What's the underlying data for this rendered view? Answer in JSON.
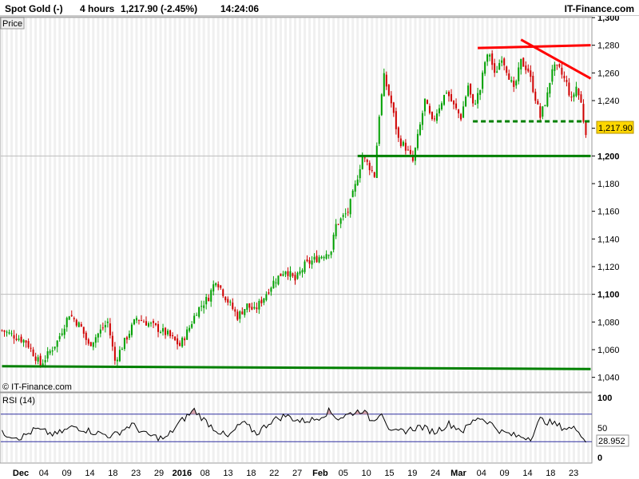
{
  "header": {
    "instrument": "Spot Gold (-)",
    "interval": "4 hours",
    "last_change": "1,217.90 (-2.45%)",
    "time": "14:24:06",
    "brand": "IT-Finance.com"
  },
  "price_panel": {
    "label": "Price",
    "last_price_label": "1,217.90",
    "copyright": "© IT-Finance.com"
  },
  "rsi_panel": {
    "label": "RSI (14)",
    "value_label": "28.952",
    "tick_labels": [
      "100",
      "50",
      "0"
    ],
    "levels": [
      30,
      70
    ]
  },
  "colors": {
    "up_candle": "#00a000",
    "down_candle": "#d00000",
    "support_line": "#008000",
    "resistance_line": "#ff0000",
    "rsi_line": "#000000",
    "rsi_band": "#3030a0",
    "rsi_overbought_fill": "#d4a0a8",
    "last_price_tag": "#ffd700"
  },
  "chart_data": [
    {
      "type": "candlestick",
      "title": "Spot Gold (-)",
      "ylabel": "Price",
      "ylim": [
        1030,
        1300
      ],
      "yticks": [
        1040,
        1060,
        1080,
        1100,
        1120,
        1140,
        1160,
        1180,
        1200,
        1220,
        1240,
        1260,
        1280,
        1300
      ],
      "ytick_labels": [
        "1,040",
        "1,060",
        "1,080",
        "1,100",
        "1,120",
        "1,140",
        "1,160",
        "1,180",
        "1,200",
        "1,220",
        "1,240",
        "1,260",
        "1,280",
        "1,300"
      ],
      "bold_ticks": [
        1100,
        1200,
        1300
      ],
      "x_tick_labels": [
        "Dec",
        "04",
        "09",
        "14",
        "18",
        "23",
        "29",
        "2016",
        "08",
        "13",
        "18",
        "22",
        "27",
        "Feb",
        "05",
        "10",
        "15",
        "19",
        "24",
        "Mar",
        "04",
        "09",
        "14",
        "18",
        "23"
      ],
      "bold_x_labels": [
        "Dec",
        "2016",
        "Feb",
        "Mar"
      ],
      "trajectory": [
        {
          "x": 0,
          "y": 1074
        },
        {
          "x": 10,
          "y": 1066
        },
        {
          "x": 16,
          "y": 1049
        },
        {
          "x": 23,
          "y": 1066
        },
        {
          "x": 28,
          "y": 1086
        },
        {
          "x": 33,
          "y": 1076
        },
        {
          "x": 36,
          "y": 1063
        },
        {
          "x": 44,
          "y": 1080
        },
        {
          "x": 47,
          "y": 1052
        },
        {
          "x": 56,
          "y": 1083
        },
        {
          "x": 62,
          "y": 1078
        },
        {
          "x": 69,
          "y": 1071
        },
        {
          "x": 74,
          "y": 1063
        },
        {
          "x": 78,
          "y": 1076
        },
        {
          "x": 81,
          "y": 1088
        },
        {
          "x": 86,
          "y": 1098
        },
        {
          "x": 89,
          "y": 1111
        },
        {
          "x": 93,
          "y": 1098
        },
        {
          "x": 98,
          "y": 1084
        },
        {
          "x": 102,
          "y": 1092
        },
        {
          "x": 105,
          "y": 1088
        },
        {
          "x": 109,
          "y": 1098
        },
        {
          "x": 113,
          "y": 1109
        },
        {
          "x": 118,
          "y": 1118
        },
        {
          "x": 122,
          "y": 1110
        },
        {
          "x": 126,
          "y": 1121
        },
        {
          "x": 133,
          "y": 1128
        },
        {
          "x": 137,
          "y": 1132
        },
        {
          "x": 139,
          "y": 1150
        },
        {
          "x": 144,
          "y": 1160
        },
        {
          "x": 147,
          "y": 1178
        },
        {
          "x": 150,
          "y": 1200
        },
        {
          "x": 153,
          "y": 1192
        },
        {
          "x": 155,
          "y": 1186
        },
        {
          "x": 157,
          "y": 1230
        },
        {
          "x": 159,
          "y": 1257
        },
        {
          "x": 162,
          "y": 1238
        },
        {
          "x": 165,
          "y": 1212
        },
        {
          "x": 168,
          "y": 1206
        },
        {
          "x": 171,
          "y": 1196
        },
        {
          "x": 174,
          "y": 1222
        },
        {
          "x": 176,
          "y": 1240
        },
        {
          "x": 179,
          "y": 1224
        },
        {
          "x": 182,
          "y": 1236
        },
        {
          "x": 185,
          "y": 1247
        },
        {
          "x": 188,
          "y": 1236
        },
        {
          "x": 191,
          "y": 1228
        },
        {
          "x": 194,
          "y": 1251
        },
        {
          "x": 196,
          "y": 1236
        },
        {
          "x": 199,
          "y": 1248
        },
        {
          "x": 201,
          "y": 1268
        },
        {
          "x": 203,
          "y": 1274
        },
        {
          "x": 205,
          "y": 1258
        },
        {
          "x": 208,
          "y": 1272
        },
        {
          "x": 211,
          "y": 1258
        },
        {
          "x": 213,
          "y": 1247
        },
        {
          "x": 216,
          "y": 1268
        },
        {
          "x": 219,
          "y": 1262
        },
        {
          "x": 222,
          "y": 1242
        },
        {
          "x": 224,
          "y": 1228
        },
        {
          "x": 227,
          "y": 1244
        },
        {
          "x": 229,
          "y": 1264
        },
        {
          "x": 232,
          "y": 1262
        },
        {
          "x": 235,
          "y": 1252
        },
        {
          "x": 237,
          "y": 1240
        },
        {
          "x": 239,
          "y": 1250
        },
        {
          "x": 241,
          "y": 1238
        },
        {
          "x": 242,
          "y": 1226
        },
        {
          "x": 243,
          "y": 1218
        }
      ],
      "lines": [
        {
          "kind": "support",
          "style": "solid",
          "points": [
            {
              "x": 0,
              "y": 1048
            },
            {
              "x": 245,
              "y": 1046
            }
          ]
        },
        {
          "kind": "support",
          "style": "solid",
          "points": [
            {
              "x": 148,
              "y": 1200
            },
            {
              "x": 245,
              "y": 1200
            }
          ]
        },
        {
          "kind": "support",
          "style": "dashed",
          "points": [
            {
              "x": 196,
              "y": 1225
            },
            {
              "x": 245,
              "y": 1225
            }
          ]
        },
        {
          "kind": "resistance",
          "style": "solid",
          "points": [
            {
              "x": 198,
              "y": 1278
            },
            {
              "x": 245,
              "y": 1280
            }
          ]
        },
        {
          "kind": "resistance",
          "style": "solid",
          "points": [
            {
              "x": 216,
              "y": 1284
            },
            {
              "x": 245,
              "y": 1256
            }
          ]
        }
      ],
      "last_price": 1217.9
    },
    {
      "type": "line",
      "title": "RSI (14)",
      "ylim": [
        0,
        100
      ],
      "yticks": [
        0,
        50,
        100
      ],
      "overbought": 70,
      "oversold": 30,
      "trajectory": [
        {
          "x": 0,
          "y": 42
        },
        {
          "x": 8,
          "y": 36
        },
        {
          "x": 14,
          "y": 48
        },
        {
          "x": 22,
          "y": 40
        },
        {
          "x": 30,
          "y": 52
        },
        {
          "x": 38,
          "y": 44
        },
        {
          "x": 46,
          "y": 38
        },
        {
          "x": 54,
          "y": 55
        },
        {
          "x": 60,
          "y": 40
        },
        {
          "x": 68,
          "y": 34
        },
        {
          "x": 74,
          "y": 58
        },
        {
          "x": 80,
          "y": 76
        },
        {
          "x": 84,
          "y": 62
        },
        {
          "x": 88,
          "y": 50
        },
        {
          "x": 94,
          "y": 36
        },
        {
          "x": 100,
          "y": 58
        },
        {
          "x": 106,
          "y": 42
        },
        {
          "x": 112,
          "y": 60
        },
        {
          "x": 118,
          "y": 68
        },
        {
          "x": 124,
          "y": 60
        },
        {
          "x": 130,
          "y": 62
        },
        {
          "x": 136,
          "y": 74
        },
        {
          "x": 140,
          "y": 64
        },
        {
          "x": 146,
          "y": 72
        },
        {
          "x": 150,
          "y": 76
        },
        {
          "x": 154,
          "y": 60
        },
        {
          "x": 158,
          "y": 74
        },
        {
          "x": 162,
          "y": 42
        },
        {
          "x": 168,
          "y": 46
        },
        {
          "x": 174,
          "y": 52
        },
        {
          "x": 180,
          "y": 44
        },
        {
          "x": 186,
          "y": 56
        },
        {
          "x": 192,
          "y": 46
        },
        {
          "x": 198,
          "y": 66
        },
        {
          "x": 202,
          "y": 60
        },
        {
          "x": 208,
          "y": 44
        },
        {
          "x": 214,
          "y": 38
        },
        {
          "x": 220,
          "y": 36
        },
        {
          "x": 224,
          "y": 62
        },
        {
          "x": 228,
          "y": 58
        },
        {
          "x": 234,
          "y": 50
        },
        {
          "x": 240,
          "y": 48
        },
        {
          "x": 243,
          "y": 29
        }
      ],
      "last_value": 28.952
    }
  ]
}
